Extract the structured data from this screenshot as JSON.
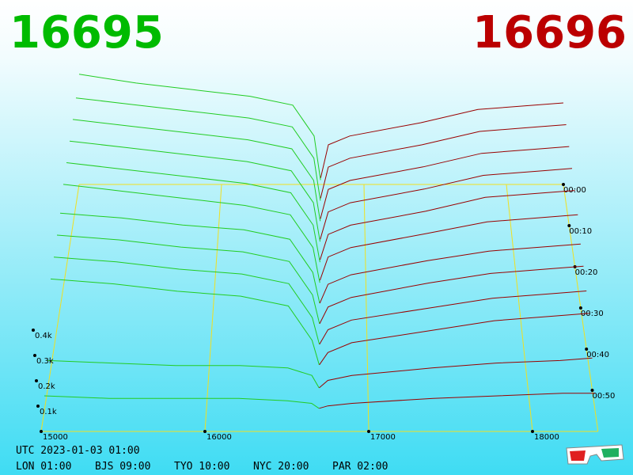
{
  "chart_data": {
    "type": "depth3d",
    "bid_price": "16695",
    "ask_price": "16696",
    "xlim": [
      15000,
      18400
    ],
    "xticks": [
      15000,
      16000,
      17000,
      18000
    ],
    "ylim": [
      0,
      0.5
    ],
    "yticks": [
      {
        "value": 0.1,
        "label": "0.1k"
      },
      {
        "value": 0.2,
        "label": "0.2k"
      },
      {
        "value": 0.3,
        "label": "0.3k"
      },
      {
        "value": 0.4,
        "label": "0.4k"
      }
    ],
    "tlim": [
      0,
      60
    ],
    "tticks": [
      {
        "value": 0,
        "label": "00:00"
      },
      {
        "value": 10,
        "label": "00:10"
      },
      {
        "value": 20,
        "label": "00:20"
      },
      {
        "value": 30,
        "label": "00:30"
      },
      {
        "value": 40,
        "label": "00:40"
      },
      {
        "value": 50,
        "label": "00:50"
      }
    ],
    "bid_color": "#22cc22",
    "ask_color": "#990000",
    "bid_x": [
      15000,
      15400,
      15800,
      16200,
      16500,
      16650,
      16695
    ],
    "ask_x": [
      16696,
      16750,
      16900,
      17400,
      17800,
      18200,
      18400
    ],
    "t": [
      0,
      5,
      10,
      15,
      20,
      25,
      30,
      35,
      40,
      45,
      50,
      55
    ],
    "bids": [
      [
        0.5,
        0.46,
        0.43,
        0.4,
        0.36,
        0.22,
        0.02
      ],
      [
        0.48,
        0.45,
        0.42,
        0.39,
        0.35,
        0.21,
        0.02
      ],
      [
        0.47,
        0.44,
        0.41,
        0.38,
        0.34,
        0.2,
        0.02
      ],
      [
        0.46,
        0.43,
        0.4,
        0.37,
        0.33,
        0.19,
        0.02
      ],
      [
        0.45,
        0.42,
        0.39,
        0.36,
        0.32,
        0.18,
        0.02
      ],
      [
        0.44,
        0.41,
        0.38,
        0.35,
        0.31,
        0.17,
        0.02
      ],
      [
        0.4,
        0.38,
        0.35,
        0.33,
        0.29,
        0.15,
        0.02
      ],
      [
        0.39,
        0.37,
        0.34,
        0.32,
        0.28,
        0.14,
        0.02
      ],
      [
        0.38,
        0.36,
        0.33,
        0.31,
        0.27,
        0.13,
        0.02
      ],
      [
        0.37,
        0.35,
        0.32,
        0.3,
        0.26,
        0.12,
        0.02
      ],
      [
        0.12,
        0.11,
        0.1,
        0.1,
        0.09,
        0.06,
        0.01
      ],
      [
        0.06,
        0.05,
        0.05,
        0.05,
        0.04,
        0.03,
        0.01
      ]
    ],
    "asks": [
      [
        0.03,
        0.18,
        0.22,
        0.28,
        0.34,
        0.36,
        0.37
      ],
      [
        0.03,
        0.17,
        0.21,
        0.27,
        0.33,
        0.35,
        0.36
      ],
      [
        0.03,
        0.16,
        0.2,
        0.26,
        0.32,
        0.34,
        0.35
      ],
      [
        0.03,
        0.15,
        0.19,
        0.25,
        0.31,
        0.33,
        0.34
      ],
      [
        0.03,
        0.14,
        0.18,
        0.24,
        0.3,
        0.32,
        0.33
      ],
      [
        0.03,
        0.13,
        0.17,
        0.23,
        0.28,
        0.3,
        0.31
      ],
      [
        0.02,
        0.1,
        0.14,
        0.2,
        0.24,
        0.26,
        0.27
      ],
      [
        0.02,
        0.09,
        0.13,
        0.19,
        0.23,
        0.25,
        0.26
      ],
      [
        0.02,
        0.08,
        0.12,
        0.17,
        0.21,
        0.23,
        0.24
      ],
      [
        0.02,
        0.07,
        0.11,
        0.16,
        0.2,
        0.22,
        0.23
      ],
      [
        0.01,
        0.04,
        0.06,
        0.09,
        0.11,
        0.12,
        0.13
      ],
      [
        0.01,
        0.02,
        0.03,
        0.05,
        0.06,
        0.07,
        0.07
      ]
    ]
  },
  "footer": {
    "utc": "UTC 2023-01-03 01:00",
    "clocks": [
      "LON 01:00",
      "BJS 09:00",
      "TYO 10:00",
      "NYC 20:00",
      "PAR 02:00"
    ]
  }
}
